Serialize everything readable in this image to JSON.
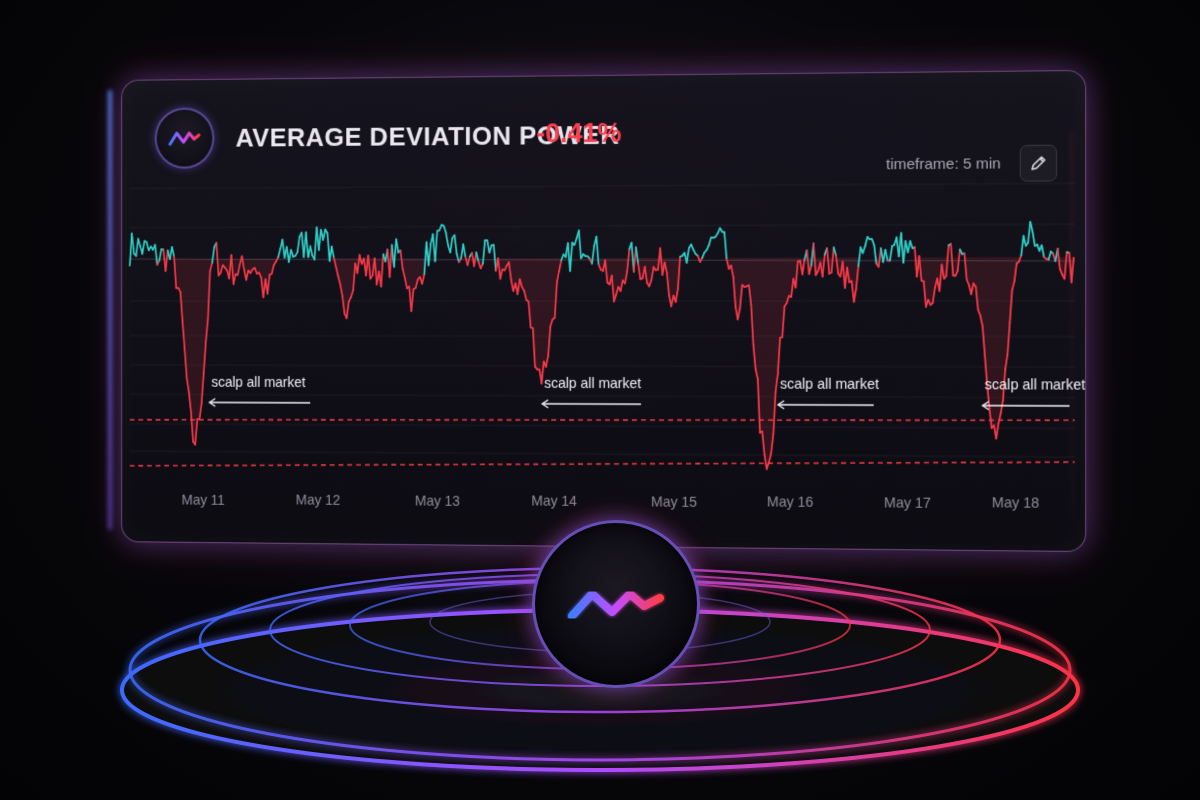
{
  "header": {
    "title": "AVERAGE DEVIATION POWER",
    "change": "-0.41%",
    "timeframe": "timeframe: 5 min"
  },
  "icons": {
    "logo": "ma-logo-icon",
    "edit": "pencil-icon"
  },
  "colors": {
    "positive": "#2fd6cf",
    "negative": "#ff3b4a",
    "accent_blue": "#4a7dff",
    "accent_red": "#ff3d4c"
  },
  "annotations": [
    {
      "label": "scalp all market"
    },
    {
      "label": "scalp all market"
    },
    {
      "label": "scalp all market"
    },
    {
      "label": "scalp all market"
    }
  ],
  "chart_data": {
    "type": "line",
    "x_ticks": [
      "May 11",
      "May 12",
      "May 13",
      "May 14",
      "May 15",
      "May 16",
      "May 17",
      "May 18"
    ],
    "grid": true,
    "reference_lines": [
      "dashed red threshold (upper)",
      "dashed red threshold (lower)"
    ],
    "series_colors": {
      "above_zero": "#2fd6cf",
      "below_zero": "#ff3b4a"
    }
  }
}
